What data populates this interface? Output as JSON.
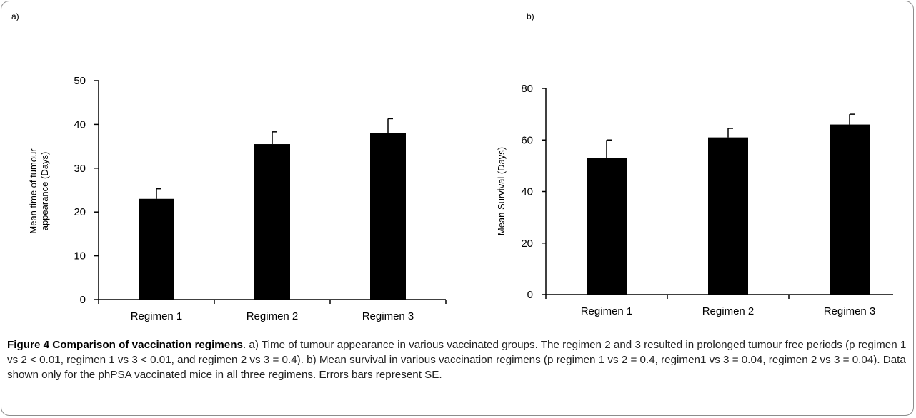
{
  "figure": {
    "panel_a_label": "a)",
    "panel_b_label": "b)",
    "caption_title": "Figure 4 Comparison of vaccination regimens",
    "caption_text": ". a) Time of tumour appearance in various vaccinated groups. The regimen 2 and 3 resulted in prolonged tumour free periods (p regimen 1 vs 2 < 0.01, regimen 1 vs 3 < 0.01, and regimen 2 vs 3 = 0.4). b) Mean survival in various vaccination regimens (p regimen 1 vs 2 = 0.4, regimen1 vs 3 = 0.04, regimen 2 vs 3 = 0.04). Data shown only for the phPSA vaccinated mice in all three regimens. Errors bars represent SE."
  },
  "chart_data": [
    {
      "type": "bar",
      "panel": "a)",
      "categories": [
        "Regimen 1",
        "Regimen 2",
        "Regimen 3"
      ],
      "values": [
        23,
        35.5,
        38
      ],
      "errors": [
        2.3,
        2.8,
        3.3
      ],
      "ylabel_lines": [
        "Mean time of tumour",
        "appearance (Days)"
      ],
      "ylim": [
        0,
        50
      ],
      "yticks": [
        0,
        10,
        20,
        30,
        40,
        50
      ],
      "bar_color": "#000000",
      "grid": false
    },
    {
      "type": "bar",
      "panel": "b)",
      "categories": [
        "Regimen 1",
        "Regimen 2",
        "Regimen 3"
      ],
      "values": [
        53,
        61,
        66
      ],
      "errors": [
        7,
        3.5,
        4
      ],
      "ylabel_lines": [
        "Mean Survival (Days)"
      ],
      "ylim": [
        0,
        80
      ],
      "yticks": [
        0,
        20,
        40,
        60,
        80
      ],
      "bar_color": "#000000",
      "grid": false
    }
  ]
}
